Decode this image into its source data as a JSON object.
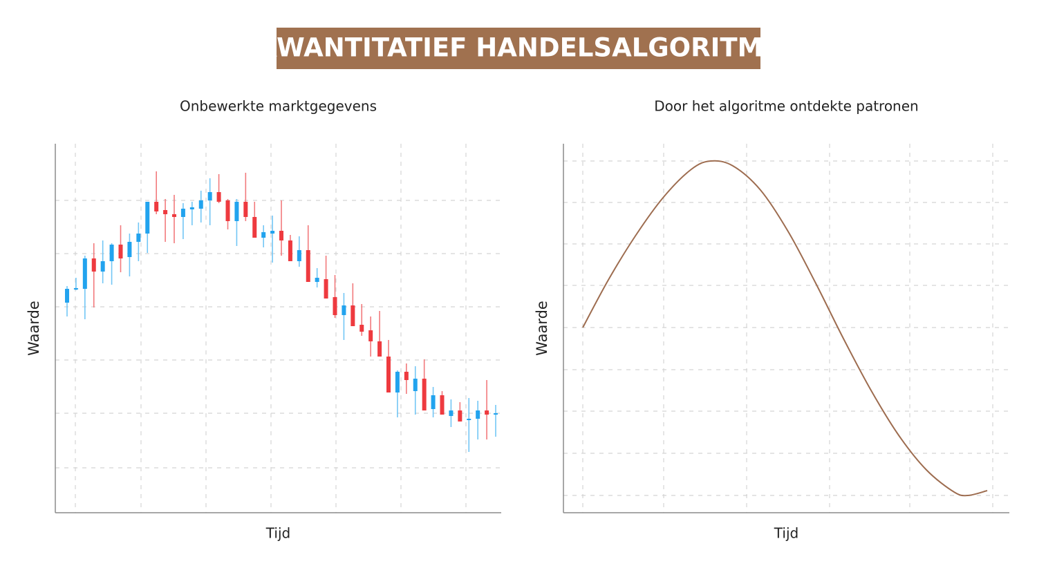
{
  "title": "KWANTITATIEF HANDELSALGORITME",
  "chart_data": [
    {
      "type": "candlestick",
      "title": "Onbewerkte marktgegevens",
      "xlabel": "Tijd",
      "ylabel": "Waarde",
      "open": [
        304,
        323,
        324,
        368,
        349,
        364,
        388,
        370,
        392,
        404,
        450,
        438,
        432,
        428,
        439,
        440,
        452,
        464,
        452,
        422,
        450,
        428,
        398,
        404,
        408,
        394,
        364,
        380,
        334,
        338,
        312,
        286,
        300,
        272,
        264,
        248,
        226,
        174,
        204,
        176,
        194,
        150,
        170,
        140,
        148,
        134,
        136,
        148,
        142
      ],
      "high": [
        328,
        340,
        372,
        390,
        394,
        390,
        416,
        404,
        420,
        450,
        494,
        454,
        460,
        448,
        450,
        466,
        484,
        490,
        454,
        454,
        492,
        450,
        416,
        430,
        452,
        402,
        400,
        416,
        354,
        372,
        344,
        318,
        332,
        302,
        284,
        292,
        250,
        206,
        216,
        212,
        222,
        182,
        176,
        164,
        160,
        166,
        162,
        192,
        156
      ],
      "low": [
        284,
        322,
        280,
        297,
        332,
        330,
        348,
        342,
        364,
        376,
        432,
        392,
        390,
        396,
        416,
        420,
        416,
        448,
        410,
        386,
        422,
        398,
        384,
        362,
        372,
        364,
        356,
        334,
        326,
        310,
        282,
        250,
        270,
        256,
        226,
        226,
        174,
        138,
        172,
        142,
        148,
        138,
        142,
        124,
        132,
        88,
        106,
        106,
        110
      ],
      "close": [
        324,
        325,
        368,
        349,
        364,
        388,
        368,
        392,
        404,
        450,
        436,
        432,
        428,
        440,
        442,
        452,
        464,
        450,
        422,
        450,
        428,
        398,
        406,
        408,
        394,
        364,
        380,
        334,
        340,
        310,
        286,
        300,
        270,
        262,
        248,
        226,
        174,
        204,
        192,
        194,
        148,
        170,
        142,
        148,
        132,
        136,
        148,
        142,
        144
      ],
      "up_color": "#22a3ee",
      "down_color": "#ee3a3f",
      "up_wick_color": "#72c6f5",
      "down_wick_color": "#f2797c",
      "ylim": [
        0,
        534
      ],
      "grid": true
    },
    {
      "type": "line",
      "title": "Door het algoritme ontdekte patronen",
      "xlabel": "Tijd",
      "ylabel": "Waarde",
      "x": [
        0,
        37,
        77,
        117,
        157,
        185,
        217,
        257,
        297,
        337,
        377,
        417,
        457,
        497,
        537,
        557,
        585
      ],
      "values": [
        268,
        337,
        402,
        457,
        497,
        509,
        502,
        467,
        407,
        332,
        252,
        177,
        112,
        62,
        30,
        25,
        32
      ],
      "color": "#9d6c4f",
      "xlim": [
        -28,
        617
      ],
      "ylim": [
        0,
        534
      ],
      "grid": true
    }
  ]
}
